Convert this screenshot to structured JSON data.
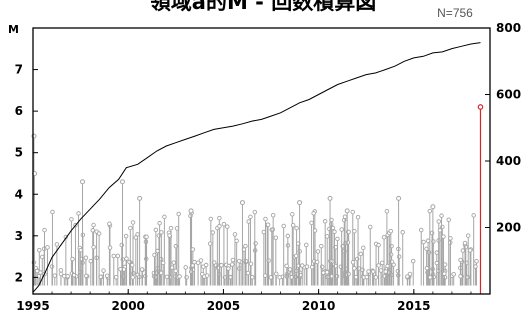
{
  "chart_data": {
    "type": "line",
    "title": "領域a的M - 回数積算図",
    "count_label": "N=756",
    "xlabel": "",
    "ylabel_left": "M",
    "ylabel_right": "",
    "x_range": [
      1995,
      2019
    ],
    "x_ticks": [
      1995,
      2000,
      2005,
      2010,
      2015
    ],
    "left_axis": {
      "range": [
        1.6,
        8.0
      ],
      "ticks": [
        2,
        3,
        4,
        5,
        6,
        7
      ]
    },
    "right_axis": {
      "range": [
        0,
        800
      ],
      "ticks": [
        200,
        400,
        600,
        800
      ]
    },
    "grid": false,
    "legend": "none",
    "colors": {
      "cumulative_line": "#000000",
      "stems": "#a6a6a6",
      "latest_event": "#d62728"
    },
    "series": [
      {
        "type": "line",
        "axis": "right",
        "x": [
          1995.0,
          1995.3,
          1995.6,
          1996.0,
          1996.5,
          1997.0,
          1997.5,
          1998.0,
          1998.5,
          1999.0,
          1999.5,
          1999.9,
          2000.5,
          2001.0,
          2001.5,
          2002.0,
          2002.5,
          2003.0,
          2003.5,
          2004.0,
          2004.5,
          2005.0,
          2005.5,
          2006.0,
          2006.5,
          2007.0,
          2007.5,
          2008.0,
          2008.5,
          2009.0,
          2009.5,
          2010.0,
          2010.5,
          2011.0,
          2011.5,
          2012.0,
          2012.5,
          2013.0,
          2013.5,
          2014.0,
          2014.5,
          2015.0,
          2015.5,
          2016.0,
          2016.5,
          2017.0,
          2017.5,
          2018.0,
          2018.5
        ],
        "values": [
          5,
          25,
          60,
          110,
          150,
          190,
          225,
          255,
          285,
          320,
          345,
          380,
          390,
          410,
          430,
          445,
          455,
          465,
          475,
          485,
          495,
          500,
          505,
          512,
          520,
          525,
          535,
          545,
          560,
          575,
          585,
          600,
          615,
          630,
          640,
          650,
          660,
          665,
          675,
          685,
          700,
          710,
          715,
          725,
          728,
          738,
          745,
          752,
          756
        ]
      },
      {
        "type": "stem",
        "axis": "left",
        "events_highlight": [
          {
            "x": 1995.05,
            "m": 5.4
          },
          {
            "x": 1995.08,
            "m": 4.5
          },
          {
            "x": 1997.6,
            "m": 4.3
          },
          {
            "x": 1999.7,
            "m": 4.3
          },
          {
            "x": 2000.6,
            "m": 3.9
          },
          {
            "x": 2010.6,
            "m": 3.9
          },
          {
            "x": 2014.2,
            "m": 3.9
          },
          {
            "x": 2006.0,
            "m": 3.8
          },
          {
            "x": 2009.0,
            "m": 3.8
          },
          {
            "x": 2016.0,
            "m": 3.7
          },
          {
            "x": 2011.5,
            "m": 3.6
          },
          {
            "x": 2003.3,
            "m": 3.6
          }
        ]
      },
      {
        "type": "stem",
        "axis": "left",
        "name": "",
        "color_key": "latest_event",
        "events": [
          {
            "x": 2018.5,
            "m": 6.1
          }
        ]
      }
    ]
  }
}
